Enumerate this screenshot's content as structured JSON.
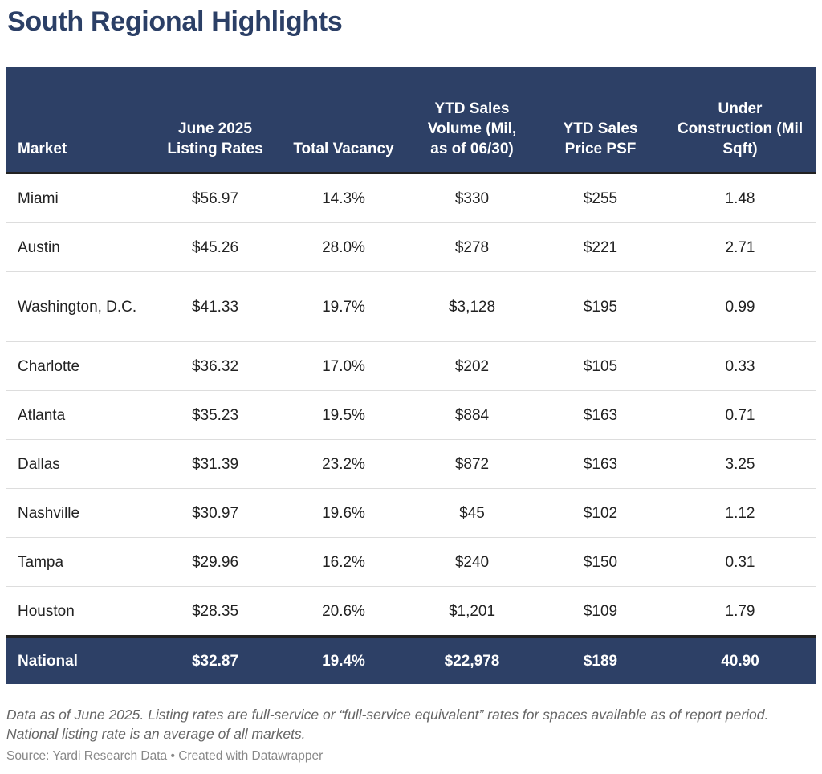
{
  "title": "South Regional Highlights",
  "table": {
    "header": [
      "Market",
      "June 2025 Listing Rates",
      "Total Vacancy",
      "YTD Sales Volume (Mil, as of 06/30)",
      "YTD Sales Price PSF",
      "Under Construction (Mil Sqft)"
    ],
    "rows": [
      [
        "Miami",
        "$56.97",
        "14.3%",
        "$330",
        "$255",
        "1.48"
      ],
      [
        "Austin",
        "$45.26",
        "28.0%",
        "$278",
        "$221",
        "2.71"
      ],
      [
        "Washington, D.C.",
        "$41.33",
        "19.7%",
        "$3,128",
        "$195",
        "0.99"
      ],
      [
        "Charlotte",
        "$36.32",
        "17.0%",
        "$202",
        "$105",
        "0.33"
      ],
      [
        "Atlanta",
        "$35.23",
        "19.5%",
        "$884",
        "$163",
        "0.71"
      ],
      [
        "Dallas",
        "$31.39",
        "23.2%",
        "$872",
        "$163",
        "3.25"
      ],
      [
        "Nashville",
        "$30.97",
        "19.6%",
        "$45",
        "$102",
        "1.12"
      ],
      [
        "Tampa",
        "$29.96",
        "16.2%",
        "$240",
        "$150",
        "0.31"
      ],
      [
        "Houston",
        "$28.35",
        "20.6%",
        "$1,201",
        "$109",
        "1.79"
      ]
    ],
    "total": [
      "National",
      "$32.87",
      "19.4%",
      "$22,978",
      "$189",
      "40.90"
    ]
  },
  "notes": "Data as of June 2025. Listing rates are full-service or “full-service equivalent” rates for spaces available as of report period. National listing rate is an average of all markets.",
  "source": "Source: Yardi Research Data • Created with Datawrapper"
}
